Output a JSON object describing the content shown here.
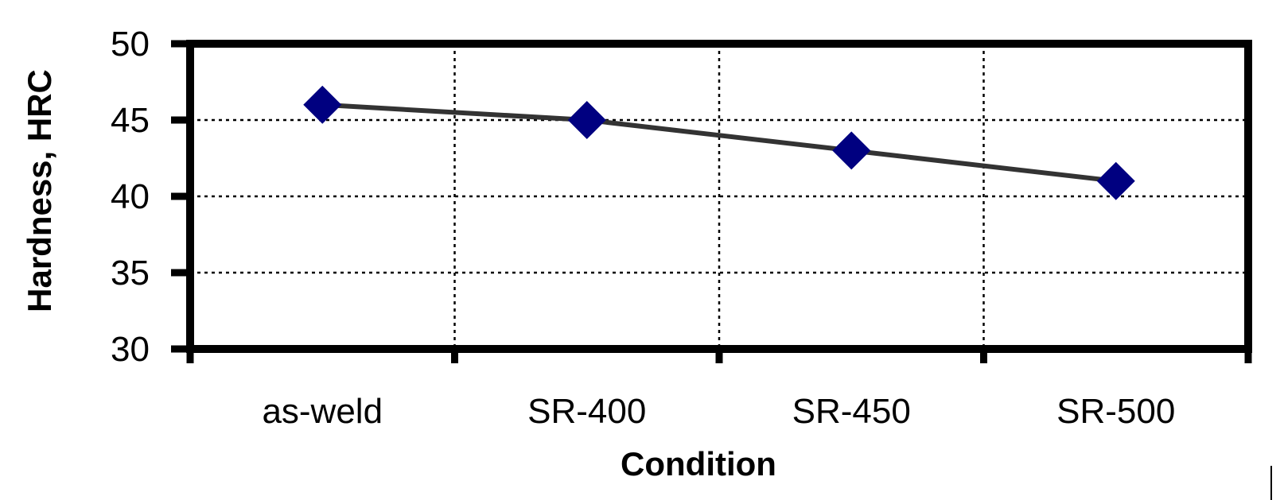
{
  "chart_data": {
    "type": "line",
    "xlabel": "Condition",
    "ylabel": "Hardness, HRC",
    "categories": [
      "as-weld",
      "SR-400",
      "SR-450",
      "SR-500"
    ],
    "series": [
      {
        "values": [
          46,
          45,
          43,
          41
        ],
        "line_color": "#333333",
        "marker": "diamond",
        "marker_color": "#000080"
      }
    ],
    "ylim": [
      30,
      50
    ],
    "yticks": [
      30,
      35,
      40,
      45,
      50
    ],
    "grid": true
  }
}
